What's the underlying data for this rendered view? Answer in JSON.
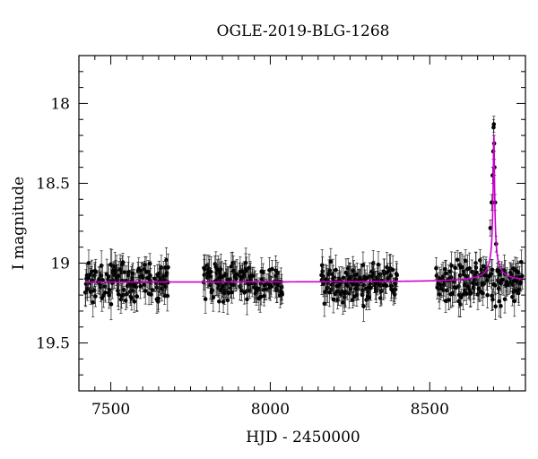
{
  "chart_data": {
    "type": "scatter",
    "title": "OGLE-2019-BLG-1268",
    "xlabel": "HJD - 2450000",
    "ylabel": "I magnitude",
    "xlim": [
      7400,
      8800
    ],
    "ylim": [
      19.8,
      17.7
    ],
    "y_inverted": true,
    "x_ticks": [
      7500,
      8000,
      8500
    ],
    "y_ticks": [
      18,
      18.5,
      19,
      19.5
    ],
    "grid": false,
    "series": [
      {
        "kind": "observations",
        "color": "#000000",
        "season_ranges": [
          [
            7420,
            7680
          ],
          [
            7790,
            8040
          ],
          [
            8160,
            8400
          ],
          [
            8520,
            8790
          ]
        ],
        "baseline_mag": 19.12,
        "scatter_mag": 0.1,
        "typical_error_mag": 0.07,
        "points": [
          {
            "x": 8690,
            "y": 18.78
          },
          {
            "x": 8694,
            "y": 18.62
          },
          {
            "x": 8697,
            "y": 18.45
          },
          {
            "x": 8699,
            "y": 18.3
          },
          {
            "x": 8700,
            "y": 18.15
          },
          {
            "x": 8701,
            "y": 18.13
          },
          {
            "x": 8702,
            "y": 18.25
          },
          {
            "x": 8703,
            "y": 18.4
          },
          {
            "x": 8705,
            "y": 18.62
          },
          {
            "x": 8708,
            "y": 18.88
          },
          {
            "x": 8712,
            "y": 19.05
          }
        ]
      },
      {
        "kind": "model",
        "color": "#cc00cc",
        "baseline_mag": 19.12,
        "peak_x": 8701,
        "peak_mag": 18.2,
        "width_days": 4
      }
    ]
  }
}
